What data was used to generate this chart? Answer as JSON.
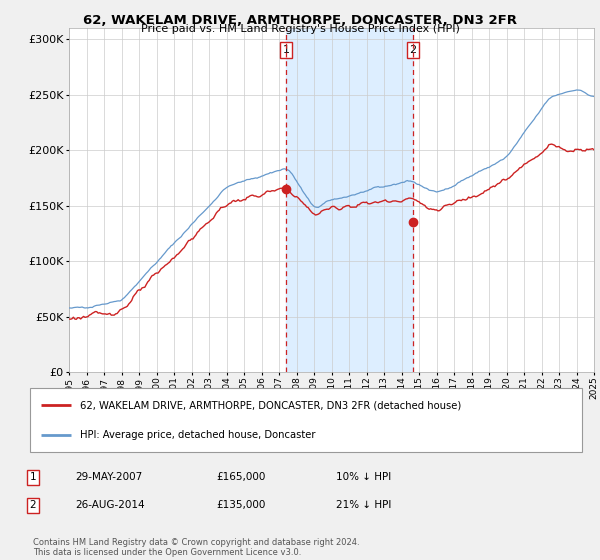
{
  "title": "62, WAKELAM DRIVE, ARMTHORPE, DONCASTER, DN3 2FR",
  "subtitle": "Price paid vs. HM Land Registry's House Price Index (HPI)",
  "legend_line1": "62, WAKELAM DRIVE, ARMTHORPE, DONCASTER, DN3 2FR (detached house)",
  "legend_line2": "HPI: Average price, detached house, Doncaster",
  "sale1_date": "29-MAY-2007",
  "sale1_price": "£165,000",
  "sale1_pct": "10% ↓ HPI",
  "sale2_date": "26-AUG-2014",
  "sale2_price": "£135,000",
  "sale2_pct": "21% ↓ HPI",
  "footer": "Contains HM Land Registry data © Crown copyright and database right 2024.\nThis data is licensed under the Open Government Licence v3.0.",
  "sale1_year": 2007.41,
  "sale1_value": 165000,
  "sale2_year": 2014.65,
  "sale2_value": 135000,
  "hpi_color": "#6699cc",
  "price_color": "#cc2222",
  "shaded_color": "#ddeeff",
  "ylim_max": 310000,
  "xlim_start": 1995,
  "xlim_end": 2025,
  "background_color": "#f0f0f0",
  "plot_bg_color": "#ffffff"
}
